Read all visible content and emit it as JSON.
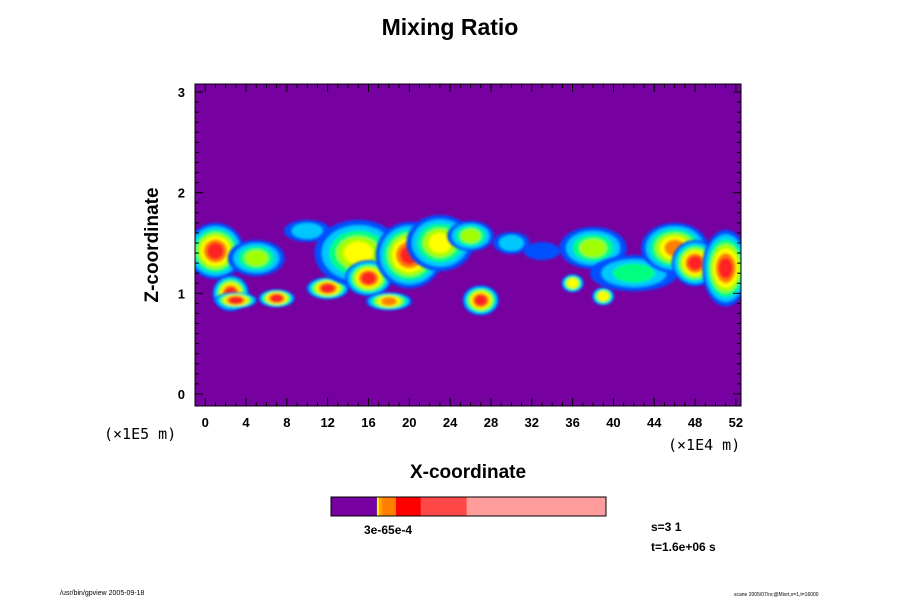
{
  "chart_data": {
    "type": "heatmap",
    "title": "Mixing Ratio",
    "xlabel": "X-coordinate",
    "ylabel": "Z-coordinate",
    "x_unit": "(×1E4 m)",
    "y_unit": "(×1E5 m)",
    "x_ticks": [
      "0",
      "4",
      "8",
      "12",
      "16",
      "20",
      "24",
      "28",
      "32",
      "36",
      "40",
      "44",
      "48",
      "52"
    ],
    "y_ticks": [
      "0",
      "1",
      "2",
      "3"
    ],
    "xlim": [
      -1,
      52.5
    ],
    "ylim": [
      -0.12,
      3.08
    ],
    "background_level_color": "#7700a0",
    "contour_colors": [
      "#0050ff",
      "#00c8ff",
      "#00ff80",
      "#a0ff00",
      "#ffff00",
      "#ff8000",
      "#ff2020"
    ],
    "features": [
      {
        "x": 1,
        "z": 1.42,
        "rx": 2.5,
        "rz": 0.25,
        "level": 6
      },
      {
        "x": 2.5,
        "z": 1.0,
        "rx": 1.5,
        "rz": 0.15,
        "level": 6
      },
      {
        "x": 5,
        "z": 1.35,
        "rx": 2.5,
        "rz": 0.15,
        "level": 3
      },
      {
        "x": 3,
        "z": 0.93,
        "rx": 1.8,
        "rz": 0.05,
        "level": 6
      },
      {
        "x": 7,
        "z": 0.95,
        "rx": 1.5,
        "rz": 0.06,
        "level": 6
      },
      {
        "x": 10,
        "z": 1.62,
        "rx": 2.0,
        "rz": 0.08,
        "level": 1
      },
      {
        "x": 12,
        "z": 1.05,
        "rx": 1.8,
        "rz": 0.08,
        "level": 6
      },
      {
        "x": 15,
        "z": 1.4,
        "rx": 4.0,
        "rz": 0.3,
        "level": 4
      },
      {
        "x": 16,
        "z": 1.15,
        "rx": 2.0,
        "rz": 0.15,
        "level": 6
      },
      {
        "x": 18,
        "z": 0.92,
        "rx": 2.0,
        "rz": 0.06,
        "level": 5
      },
      {
        "x": 20,
        "z": 1.38,
        "rx": 3.0,
        "rz": 0.3,
        "level": 6
      },
      {
        "x": 23,
        "z": 1.5,
        "rx": 3.0,
        "rz": 0.25,
        "level": 4
      },
      {
        "x": 26,
        "z": 1.57,
        "rx": 2.0,
        "rz": 0.12,
        "level": 3
      },
      {
        "x": 27,
        "z": 0.93,
        "rx": 1.5,
        "rz": 0.12,
        "level": 6
      },
      {
        "x": 30,
        "z": 1.5,
        "rx": 1.5,
        "rz": 0.08,
        "level": 1
      },
      {
        "x": 33,
        "z": 1.42,
        "rx": 1.5,
        "rz": 0.06,
        "level": 0
      },
      {
        "x": 38,
        "z": 1.45,
        "rx": 3.0,
        "rz": 0.18,
        "level": 3
      },
      {
        "x": 36,
        "z": 1.1,
        "rx": 0.8,
        "rz": 0.06,
        "level": 4
      },
      {
        "x": 39,
        "z": 0.97,
        "rx": 0.8,
        "rz": 0.06,
        "level": 4
      },
      {
        "x": 42,
        "z": 1.2,
        "rx": 4.0,
        "rz": 0.15,
        "level": 2
      },
      {
        "x": 46,
        "z": 1.45,
        "rx": 3.0,
        "rz": 0.22,
        "level": 5
      },
      {
        "x": 48,
        "z": 1.3,
        "rx": 2.0,
        "rz": 0.2,
        "level": 6
      },
      {
        "x": 51,
        "z": 1.25,
        "rx": 2.0,
        "rz": 0.35,
        "level": 6
      }
    ],
    "colorbar": {
      "segments": [
        {
          "color": "#7700a0",
          "frac": 0.167
        },
        {
          "color": "#ffff00",
          "frac": 0.007
        },
        {
          "color": "#ffa000",
          "frac": 0.012
        },
        {
          "color": "#ff8000",
          "frac": 0.05
        },
        {
          "color": "#ff0000",
          "frac": 0.09
        },
        {
          "color": "#ff4848",
          "frac": 0.167
        },
        {
          "color": "#ff9c9c",
          "frac": 0.507
        }
      ],
      "label": "3e-65e-4"
    }
  },
  "info": {
    "s_label": "s=3 1",
    "t_label": "t=1.6e+06 s"
  },
  "footer": {
    "left": "/usr/bin/gpview 2005-09-18",
    "right": "scane 2005/07/nc@Mixrt,x=1,t=16000"
  }
}
